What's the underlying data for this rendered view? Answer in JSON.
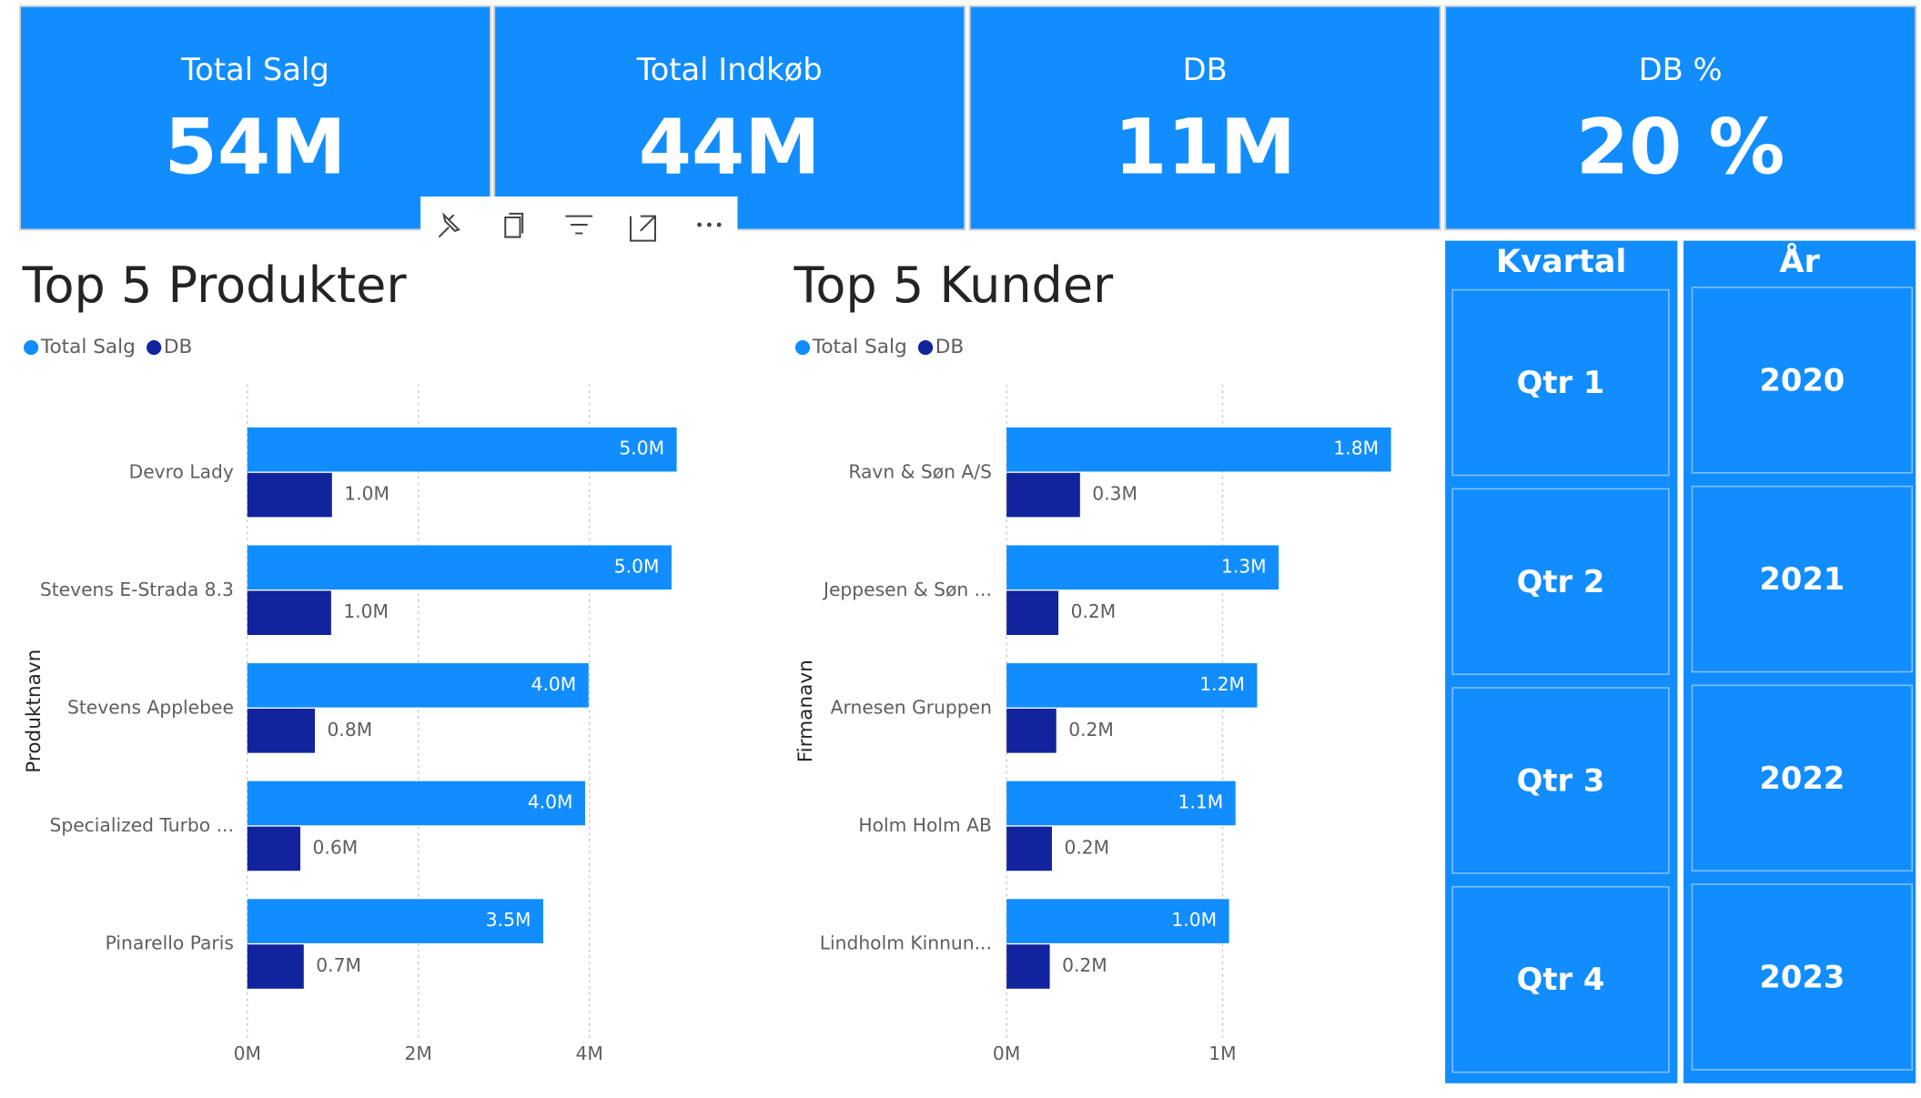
{
  "cards": [
    {
      "label": "Total Salg",
      "value": "54M"
    },
    {
      "label": "Total Indkøb",
      "value": "44M"
    },
    {
      "label": "DB",
      "value": "11M"
    },
    {
      "label": "DB %",
      "value": "20 %"
    }
  ],
  "slicers": [
    {
      "title": "Kvartal",
      "items": [
        "Qtr 1",
        "Qtr 2",
        "Qtr 3",
        "Qtr 4"
      ]
    },
    {
      "title": "År",
      "items": [
        "2020",
        "2021",
        "2022",
        "2023"
      ]
    }
  ],
  "chart_data": [
    {
      "type": "hbar",
      "title": "Top 5 Produkter",
      "y_label": "Produktnavn",
      "categories": [
        "Devro Lady",
        "Stevens E-Strada 8.3",
        "Stevens Applebee",
        "Specialized Turbo ...",
        "Pinarello Paris"
      ],
      "series": [
        {
          "name": "Total Salg",
          "color": "#118DFF",
          "values": [
            5.02,
            4.96,
            3.99,
            3.95,
            3.46
          ],
          "value_labels": [
            "5.0M",
            "5.0M",
            "4.0M",
            "4.0M",
            "3.5M"
          ]
        },
        {
          "name": "DB",
          "color": "#12239E",
          "values": [
            0.99,
            0.98,
            0.79,
            0.62,
            0.66
          ],
          "value_labels": [
            "1.0M",
            "1.0M",
            "0.8M",
            "0.6M",
            "0.7M"
          ]
        }
      ],
      "xlim": [
        0,
        5.2
      ],
      "xticks": [
        {
          "value": 0,
          "label": "0M"
        },
        {
          "value": 2,
          "label": "2M"
        },
        {
          "value": 4,
          "label": "4M"
        }
      ],
      "grid": true
    },
    {
      "type": "hbar",
      "title": "Top 5 Kunder",
      "y_label": "Firmanavn",
      "categories": [
        "Ravn & Søn A/S",
        "Jeppesen & Søn ...",
        "Arnesen Gruppen",
        "Holm Holm AB",
        "Lindholm Kinnun..."
      ],
      "series": [
        {
          "name": "Total Salg",
          "color": "#118DFF",
          "values": [
            1.78,
            1.26,
            1.16,
            1.06,
            1.03
          ],
          "value_labels": [
            "1.8M",
            "1.3M",
            "1.2M",
            "1.1M",
            "1.0M"
          ]
        },
        {
          "name": "DB",
          "color": "#12239E",
          "values": [
            0.34,
            0.24,
            0.23,
            0.21,
            0.2
          ],
          "value_labels": [
            "0.3M",
            "0.2M",
            "0.2M",
            "0.2M",
            "0.2M"
          ]
        }
      ],
      "xlim": [
        0,
        1.9
      ],
      "xticks": [
        {
          "value": 0,
          "label": "0M"
        },
        {
          "value": 1,
          "label": "1M"
        }
      ],
      "grid": true
    }
  ]
}
